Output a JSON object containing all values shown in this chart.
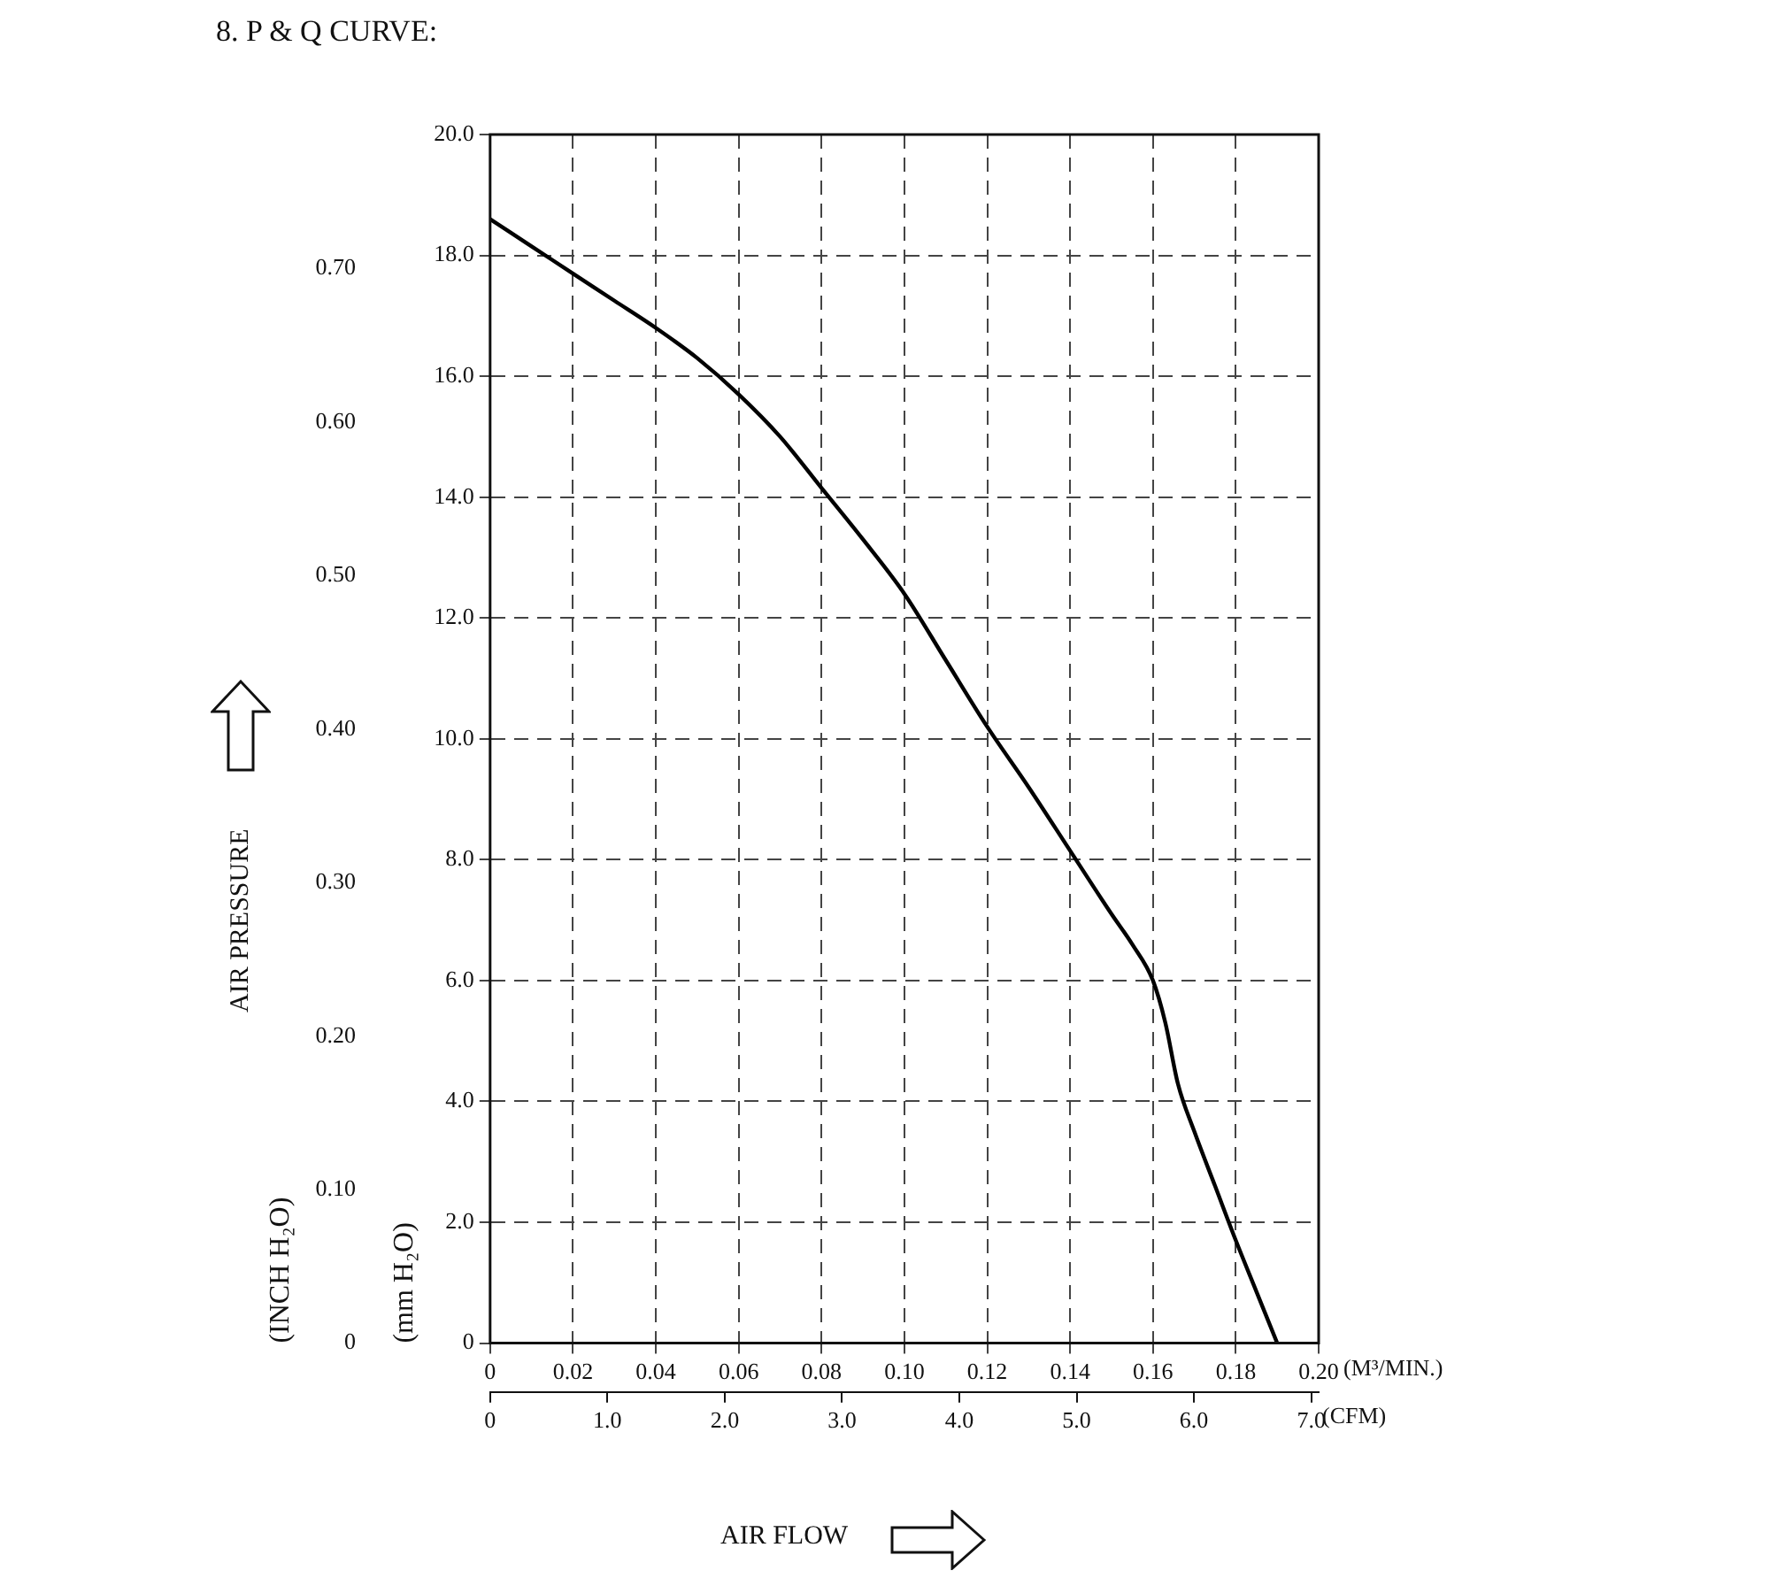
{
  "chart_data": {
    "type": "line",
    "title": "8. P & Q CURVE:",
    "xlabel": "(M³/MIN.)",
    "x2label": "(CFM)",
    "ylabel": "(mm H₂O)",
    "y2label": "(INCH H₂O)",
    "annotations": [
      "AIR PRESSURE",
      "AIR FLOW"
    ],
    "series": [
      {
        "color": "#000000",
        "x": [
          0,
          0.01,
          0.02,
          0.03,
          0.04,
          0.05,
          0.06,
          0.07,
          0.08,
          0.09,
          0.1,
          0.11,
          0.12,
          0.13,
          0.14,
          0.15,
          0.155,
          0.16,
          0.163,
          0.166,
          0.17,
          0.175,
          0.18,
          0.185,
          0.19
        ],
        "values": [
          18.6,
          18.15,
          17.7,
          17.25,
          16.8,
          16.3,
          15.7,
          15.0,
          14.15,
          13.3,
          12.4,
          11.3,
          10.2,
          9.2,
          8.15,
          7.1,
          6.6,
          6.0,
          5.3,
          4.3,
          3.5,
          2.6,
          1.7,
          0.85,
          0
        ]
      }
    ],
    "xlim": [
      0,
      0.2
    ],
    "xticks": [
      0,
      0.02,
      0.04,
      0.06,
      0.08,
      {
        "value": 0.1,
        "label": "0.10"
      },
      0.12,
      0.14,
      0.16,
      0.18,
      {
        "value": 0.2,
        "label": "0.20"
      }
    ],
    "x2lim": [
      0,
      7.063
    ],
    "x2ticks": [
      0,
      {
        "value": 1,
        "label": "1.0"
      },
      {
        "value": 2,
        "label": "2.0"
      },
      {
        "value": 3,
        "label": "3.0"
      },
      {
        "value": 4,
        "label": "4.0"
      },
      {
        "value": 5,
        "label": "5.0"
      },
      {
        "value": 6,
        "label": "6.0"
      },
      {
        "value": 7,
        "label": "7.0"
      }
    ],
    "ylim": [
      0,
      20
    ],
    "yticks": [
      0,
      {
        "value": 2,
        "label": "2.0"
      },
      {
        "value": 4,
        "label": "4.0"
      },
      {
        "value": 6,
        "label": "6.0"
      },
      {
        "value": 8,
        "label": "8.0"
      },
      {
        "value": 10,
        "label": "10.0"
      },
      {
        "value": 12,
        "label": "12.0"
      },
      {
        "value": 14,
        "label": "14.0"
      },
      {
        "value": 16,
        "label": "16.0"
      },
      {
        "value": 18,
        "label": "18.0"
      },
      {
        "value": 20,
        "label": "20.0"
      }
    ],
    "y2lim": [
      0,
      0.7874
    ],
    "y2ticks": [
      0,
      {
        "value": 0.1,
        "label": "0.10"
      },
      {
        "value": 0.2,
        "label": "0.20"
      },
      {
        "value": 0.3,
        "label": "0.30"
      },
      {
        "value": 0.4,
        "label": "0.40"
      },
      {
        "value": 0.5,
        "label": "0.50"
      },
      {
        "value": 0.6,
        "label": "0.60"
      },
      {
        "value": 0.7,
        "label": "0.70"
      }
    ],
    "grid": true,
    "legend": false,
    "marker": "none",
    "line_style": "solid"
  }
}
